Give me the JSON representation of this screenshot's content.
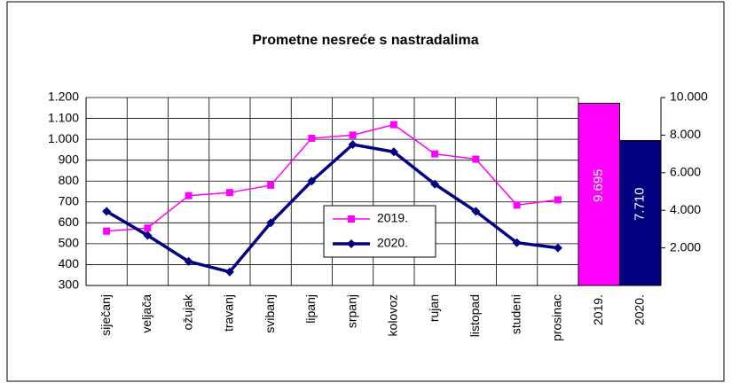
{
  "chart_data": [
    {
      "type": "line",
      "title": "Prometne nesreće s nastradalima",
      "categories": [
        "siječanj",
        "veljača",
        "ožujak",
        "travanj",
        "svibanj",
        "lipanj",
        "srpanj",
        "kolovoz",
        "rujan",
        "listopad",
        "studeni",
        "prosinac"
      ],
      "series": [
        {
          "name": "2019.",
          "color": "#ff00ff",
          "values": [
            560,
            575,
            730,
            745,
            780,
            1005,
            1020,
            1070,
            930,
            905,
            685,
            710
          ]
        },
        {
          "name": "2020.",
          "color": "#000080",
          "values": [
            655,
            540,
            415,
            365,
            600,
            800,
            975,
            940,
            785,
            655,
            505,
            480
          ]
        }
      ],
      "ylim": [
        300,
        1200
      ],
      "yticks": [
        300,
        400,
        500,
        600,
        700,
        800,
        900,
        {
          "value": 1000,
          "label": "1.000"
        },
        {
          "value": 1100,
          "label": "1.100"
        },
        {
          "value": 1200,
          "label": "1.200"
        }
      ],
      "grid": true,
      "legend": "center"
    },
    {
      "type": "bar",
      "categories": [
        "2019.",
        "2020."
      ],
      "values": [
        9695,
        7710
      ],
      "value_labels": [
        "9.695",
        "7.710"
      ],
      "colors": [
        "#ff00ff",
        "#000080"
      ],
      "y2lim": [
        0,
        10000
      ],
      "y2ticks": [
        {
          "value": 2000,
          "label": "2.000"
        },
        {
          "value": 4000,
          "label": "4.000"
        },
        {
          "value": 6000,
          "label": "6.000"
        },
        {
          "value": 8000,
          "label": "8.000"
        },
        {
          "value": 10000,
          "label": "10.000"
        }
      ]
    }
  ]
}
